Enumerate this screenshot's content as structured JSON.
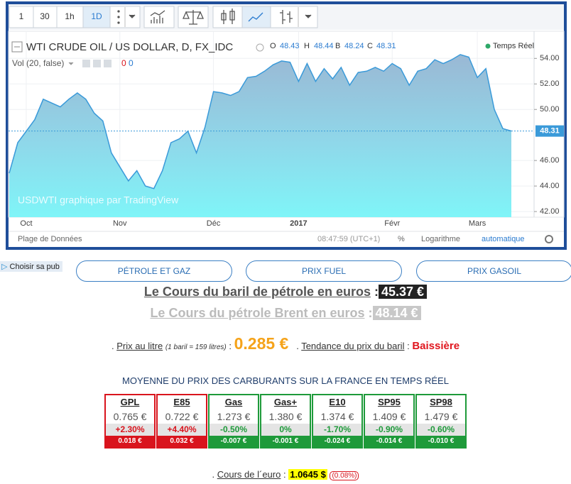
{
  "toolbar": {
    "intervals": [
      "1",
      "30",
      "1h",
      "1D"
    ]
  },
  "chart_data": {
    "type": "area",
    "title": "WTI CRUDE OIL / US DOLLAR, D, FX_IDC",
    "ohlc": [
      {
        "label": "O",
        "value": 48.43
      },
      {
        "label": "H",
        "value": 48.44
      },
      {
        "label": "B",
        "value": 48.24
      },
      {
        "label": "C",
        "value": 48.31
      }
    ],
    "status": "Temps Réel",
    "volume": {
      "label": "Vol (20, false)",
      "values": [
        0,
        0
      ]
    },
    "watermark": "USDWTI graphique par TradingView",
    "categories": [
      null,
      null,
      "Oct",
      null,
      null,
      null,
      null,
      null,
      null,
      null,
      null,
      null,
      null,
      "Nov",
      null,
      null,
      null,
      null,
      null,
      null,
      null,
      null,
      null,
      null,
      "Déc",
      null,
      null,
      null,
      null,
      null,
      null,
      null,
      null,
      null,
      "2017",
      null,
      null,
      null,
      null,
      null,
      null,
      null,
      null,
      null,
      null,
      "Févr",
      null,
      null,
      null,
      null,
      null,
      null,
      null,
      null,
      null,
      "Mars",
      null,
      null,
      null,
      null
    ],
    "values": [
      45.0,
      47.4,
      48.3,
      49.2,
      50.8,
      50.5,
      50.2,
      50.8,
      51.3,
      50.8,
      49.7,
      49.1,
      46.6,
      45.5,
      44.4,
      45.2,
      44.0,
      43.8,
      45.2,
      47.4,
      47.7,
      48.3,
      46.6,
      48.6,
      51.4,
      51.3,
      51.1,
      51.4,
      52.5,
      52.6,
      53.0,
      53.5,
      53.8,
      53.7,
      52.2,
      53.6,
      52.2,
      53.2,
      52.4,
      53.3,
      51.9,
      52.9,
      53.0,
      53.3,
      53.0,
      53.6,
      53.2,
      51.9,
      53.0,
      53.2,
      53.9,
      53.6,
      53.9,
      54.3,
      54.1,
      52.5,
      53.2,
      50.0,
      48.5,
      48.31
    ],
    "color": "#3a9ad9",
    "ylim": [
      41.56,
      56.13
    ],
    "yticks": [
      {
        "value": 42,
        "label": "42.00"
      },
      {
        "value": 44,
        "label": "44.00"
      },
      {
        "value": 46,
        "label": "46.00"
      },
      {
        "value": 50,
        "label": "50.00"
      },
      {
        "value": 52,
        "label": "52.00"
      },
      {
        "value": 54,
        "label": "54.00"
      }
    ],
    "last_value": 48.31,
    "grid": true,
    "footer": {
      "range": "Plage de Données",
      "time": "08:47:59 (UTC+1)",
      "percent": "%",
      "log": "Logarithme",
      "auto": "automatique"
    }
  },
  "ad_label": "Choisir sa pub",
  "nav": [
    "PÉTROLE ET GAZ",
    "PRIX FUEL",
    "PRIX GASOIL"
  ],
  "bullet": ".",
  "colon": ":",
  "wti_euro": {
    "label": "Le Cours du baril de pétrole en euros",
    "value": "45.37 €"
  },
  "brent_euro": {
    "label": "Le Cours du pétrole Brent en euros",
    "value": "48.14 €"
  },
  "litre": {
    "label": "Prix au litre",
    "note": "(1 baril = 159 litres)",
    "value": "0.285 €"
  },
  "trend": {
    "label": "Tendance du prix du baril",
    "value": "Baissière"
  },
  "fuels": {
    "title": "MOYENNE DU PRIX DES CARBURANTS SUR LA FRANCE EN TEMPS RÉEL",
    "items": [
      {
        "name": "GPL",
        "price": "0.765 €",
        "change": "+2.30%",
        "diff": "0.018 €",
        "color": "#d9141d"
      },
      {
        "name": "E85",
        "price": "0.722 €",
        "change": "+4.40%",
        "diff": "0.032 €",
        "color": "#d9141d"
      },
      {
        "name": "Gas",
        "price": "1.273 €",
        "change": "-0.50%",
        "diff": "-0.007 €",
        "color": "#1e9a3a"
      },
      {
        "name": "Gas+",
        "price": "1.380 €",
        "change": "0%",
        "diff": "-0.001 €",
        "color": "#1e9a3a"
      },
      {
        "name": "E10",
        "price": "1.374 €",
        "change": "-1.70%",
        "diff": "-0.024 €",
        "color": "#1e9a3a"
      },
      {
        "name": "SP95",
        "price": "1.409 €",
        "change": "-0.90%",
        "diff": "-0.014 €",
        "color": "#1e9a3a"
      },
      {
        "name": "SP98",
        "price": "1.479 €",
        "change": "-0.60%",
        "diff": "-0.010 €",
        "color": "#1e9a3a"
      }
    ]
  },
  "euro": {
    "label": "Cours de l´euro",
    "value": "1.0645 $",
    "change": "(0.08%)"
  }
}
